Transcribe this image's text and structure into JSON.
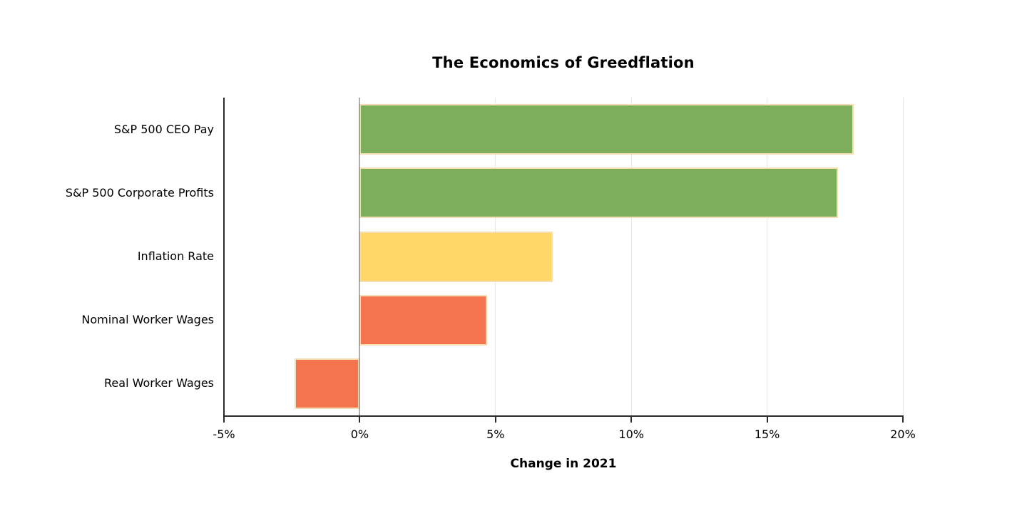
{
  "page": {
    "background": "#ffffff"
  },
  "chart_data": {
    "type": "bar",
    "orientation": "horizontal",
    "title": "The Economics of Greedflation",
    "xlabel": "Change in 2021",
    "ylabel": "",
    "categories": [
      "S&P 500 CEO Pay",
      "S&P 500 Corporate Profits",
      "Inflation Rate",
      "Nominal Worker Wages",
      "Real Worker Wages"
    ],
    "values": [
      18.2,
      17.6,
      7.1,
      4.7,
      -2.4
    ],
    "unit": "%",
    "xlim": [
      -5,
      20
    ],
    "xticks": [
      -5,
      0,
      5,
      10,
      15,
      20
    ],
    "xtick_labels": [
      "-5%",
      "0%",
      "5%",
      "10%",
      "15%",
      "20%"
    ],
    "grid": true,
    "legend": "none",
    "colors": {
      "bars": [
        "#7CAE5B",
        "#7CAE5B",
        "#FFD768",
        "#F47450",
        "#F47450"
      ],
      "bar_edge": "#F5DEB3",
      "gridline": "#E7E7E7",
      "zero_line": "rgba(0,0,0,0.32)",
      "axis": "#2B2B2B",
      "text": "#000000"
    }
  }
}
